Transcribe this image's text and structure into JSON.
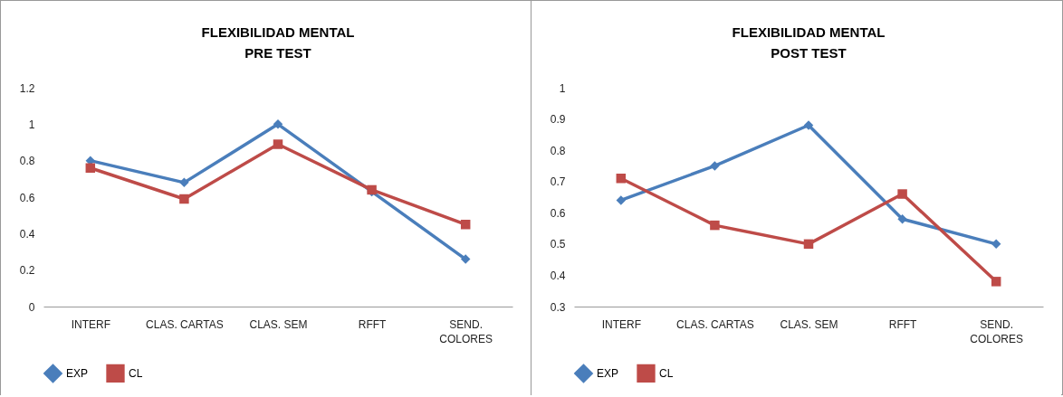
{
  "chart_data": [
    {
      "type": "line",
      "title": "FLEXIBILIDAD MENTAL",
      "subtitle": "PRE TEST",
      "categories": [
        "INTERF",
        "CLAS. CARTAS",
        "CLAS. SEM",
        "RFFT",
        "SEND. COLORES"
      ],
      "series": [
        {
          "name": "EXP",
          "color": "#4a7ebb",
          "marker": "diamond",
          "values": [
            0.8,
            0.68,
            1.0,
            0.63,
            0.26
          ]
        },
        {
          "name": "CL",
          "color": "#be4b48",
          "marker": "square",
          "values": [
            0.76,
            0.59,
            0.89,
            0.64,
            0.45
          ]
        }
      ],
      "ylim": [
        0,
        1.2
      ],
      "yticks": [
        0,
        0.2,
        0.4,
        0.6,
        0.8,
        1,
        1.2
      ],
      "grid": false,
      "legend": "bottom"
    },
    {
      "type": "line",
      "title": "FLEXIBILIDAD MENTAL",
      "subtitle": "POST TEST",
      "categories": [
        "INTERF",
        "CLAS. CARTAS",
        "CLAS. SEM",
        "RFFT",
        "SEND. COLORES"
      ],
      "series": [
        {
          "name": "EXP",
          "color": "#4a7ebb",
          "marker": "diamond",
          "values": [
            0.64,
            0.75,
            0.88,
            0.58,
            0.5
          ]
        },
        {
          "name": "CL",
          "color": "#be4b48",
          "marker": "square",
          "values": [
            0.71,
            0.56,
            0.5,
            0.66,
            0.38
          ]
        }
      ],
      "ylim": [
        0.3,
        1
      ],
      "yticks": [
        0.3,
        0.4,
        0.5,
        0.6,
        0.7,
        0.8,
        0.9,
        1
      ],
      "grid": false,
      "legend": "bottom"
    }
  ]
}
